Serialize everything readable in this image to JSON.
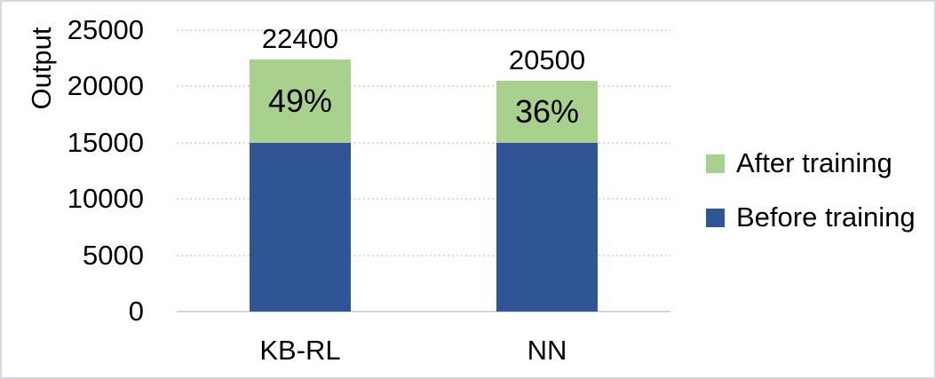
{
  "chart_data": {
    "type": "bar",
    "stacked": true,
    "ylabel": "Output",
    "categories": [
      "KB-RL",
      "NN"
    ],
    "series": [
      {
        "name": "Before training",
        "color": "#2F5597",
        "values": [
          15000,
          15000
        ]
      },
      {
        "name": "After training",
        "color": "#A9D18E",
        "values": [
          7400,
          5500
        ]
      }
    ],
    "stack_totals": [
      22400,
      20500
    ],
    "total_labels": [
      "22400",
      "20500"
    ],
    "percent_labels": [
      "49%",
      "36%"
    ],
    "yticks": [
      0,
      5000,
      10000,
      15000,
      20000,
      25000
    ],
    "ylim": [
      0,
      25000
    ],
    "grid": "horizontal-dotted",
    "legend": {
      "position": "right",
      "items": [
        {
          "label": "After training",
          "color": "#A9D18E"
        },
        {
          "label": "Before training",
          "color": "#2F5597"
        }
      ]
    }
  },
  "colors": {
    "background": "#ffffff",
    "text": "#000000",
    "gridline": "#d9d9d9",
    "axis_line": "#d6d6d6",
    "border": "#d5d8dd",
    "after_training": "#A9D18E",
    "before_training": "#2F5597"
  }
}
